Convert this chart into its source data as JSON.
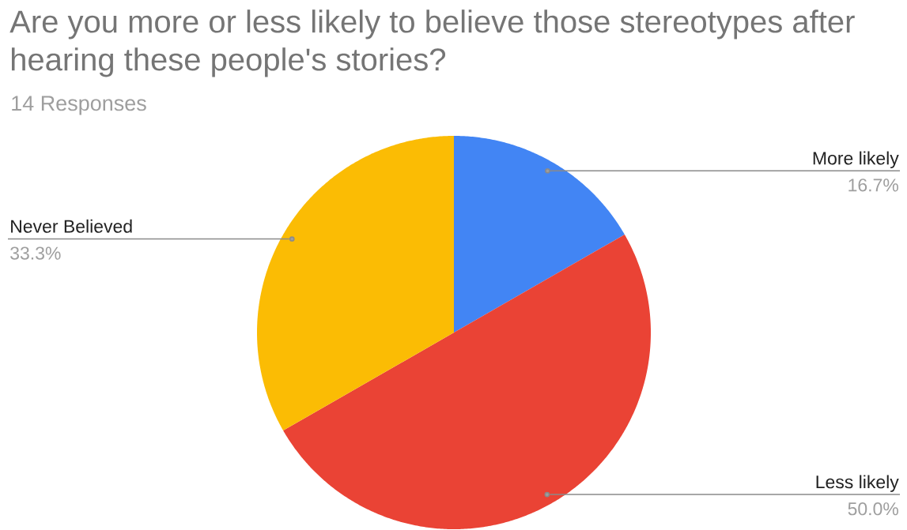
{
  "chart_data": {
    "type": "pie",
    "title": "Are you more or less likely to believe those stereotypes after hearing these people's stories?",
    "subtitle": "14 Responses",
    "categories": [
      "More likely",
      "Less likely",
      "Never Believed"
    ],
    "values": [
      16.7,
      50.0,
      33.3
    ],
    "colors": [
      "#4285f4",
      "#ea4335",
      "#fbbc04"
    ],
    "value_labels": [
      "16.7%",
      "50.0%",
      "33.3%"
    ]
  }
}
